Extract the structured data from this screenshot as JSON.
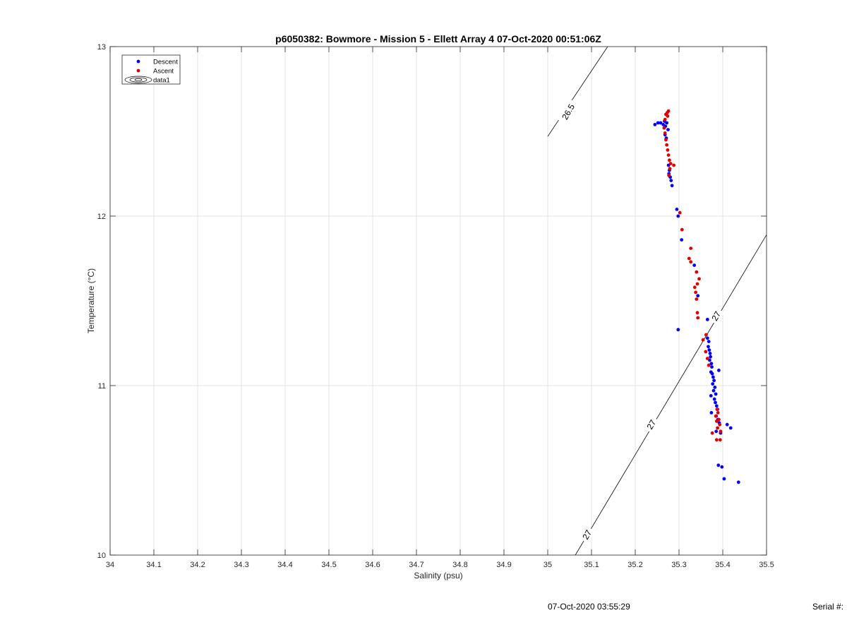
{
  "chart_data": {
    "type": "scatter",
    "title": "p6050382: Bowmore - Mission 5 - Ellett Array 4 07-Oct-2020 00:51:06Z",
    "xlabel": "Salinity (psu)",
    "ylabel": "Temperature (°C)",
    "xlim": [
      34,
      35.5
    ],
    "ylim": [
      10,
      13
    ],
    "xticks": [
      "34",
      "34.1",
      "34.2",
      "34.3",
      "34.4",
      "34.5",
      "34.6",
      "34.7",
      "34.8",
      "34.9",
      "35",
      "35.1",
      "35.2",
      "35.3",
      "35.4",
      "35.5"
    ],
    "yticks": [
      "10",
      "11",
      "12",
      "13"
    ],
    "grid": true,
    "legend_position": "top-left",
    "legend": [
      "Descent",
      "Ascent",
      "data1"
    ],
    "colors": {
      "Descent": "#0000ff",
      "Ascent": "#e00000",
      "contour": "#000000"
    },
    "series": [
      {
        "name": "Descent",
        "points": [
          [
            35.245,
            12.54
          ],
          [
            35.252,
            12.55
          ],
          [
            35.258,
            12.55
          ],
          [
            35.264,
            12.54
          ],
          [
            35.267,
            12.56
          ],
          [
            35.269,
            12.53
          ],
          [
            35.272,
            12.55
          ],
          [
            35.275,
            12.51
          ],
          [
            35.268,
            12.48
          ],
          [
            35.271,
            12.46
          ],
          [
            35.276,
            12.3
          ],
          [
            35.278,
            12.27
          ],
          [
            35.277,
            12.25
          ],
          [
            35.28,
            12.23
          ],
          [
            35.282,
            12.21
          ],
          [
            35.284,
            12.18
          ],
          [
            35.295,
            12.04
          ],
          [
            35.298,
            12.0
          ],
          [
            35.306,
            11.86
          ],
          [
            35.335,
            11.71
          ],
          [
            35.343,
            11.53
          ],
          [
            35.365,
            11.39
          ],
          [
            35.298,
            11.33
          ],
          [
            35.365,
            11.28
          ],
          [
            35.368,
            11.26
          ],
          [
            35.367,
            11.23
          ],
          [
            35.369,
            11.21
          ],
          [
            35.371,
            11.19
          ],
          [
            35.372,
            11.17
          ],
          [
            35.37,
            11.15
          ],
          [
            35.374,
            11.13
          ],
          [
            35.375,
            11.11
          ],
          [
            35.373,
            11.08
          ],
          [
            35.391,
            11.09
          ],
          [
            35.376,
            11.07
          ],
          [
            35.378,
            11.05
          ],
          [
            35.38,
            11.03
          ],
          [
            35.377,
            11.01
          ],
          [
            35.382,
            10.99
          ],
          [
            35.379,
            10.97
          ],
          [
            35.384,
            10.95
          ],
          [
            35.373,
            10.94
          ],
          [
            35.381,
            10.92
          ],
          [
            35.383,
            10.9
          ],
          [
            35.386,
            10.88
          ],
          [
            35.388,
            10.86
          ],
          [
            35.374,
            10.84
          ],
          [
            35.385,
            10.82
          ],
          [
            35.389,
            10.8
          ],
          [
            35.392,
            10.78
          ],
          [
            35.41,
            10.77
          ],
          [
            35.418,
            10.75
          ],
          [
            35.385,
            10.73
          ],
          [
            35.395,
            10.72
          ],
          [
            35.39,
            10.53
          ],
          [
            35.398,
            10.52
          ],
          [
            35.403,
            10.45
          ],
          [
            35.436,
            10.43
          ]
        ]
      },
      {
        "name": "Ascent",
        "points": [
          [
            35.273,
            12.61
          ],
          [
            35.276,
            12.62
          ],
          [
            35.27,
            12.6
          ],
          [
            35.274,
            12.59
          ],
          [
            35.268,
            12.57
          ],
          [
            35.266,
            12.52
          ],
          [
            35.268,
            12.49
          ],
          [
            35.27,
            12.45
          ],
          [
            35.272,
            12.42
          ],
          [
            35.274,
            12.39
          ],
          [
            35.276,
            12.36
          ],
          [
            35.278,
            12.33
          ],
          [
            35.288,
            12.3
          ],
          [
            35.281,
            12.31
          ],
          [
            35.279,
            12.28
          ],
          [
            35.277,
            12.24
          ],
          [
            35.302,
            12.02
          ],
          [
            35.307,
            11.92
          ],
          [
            35.327,
            11.81
          ],
          [
            35.323,
            11.75
          ],
          [
            35.327,
            11.73
          ],
          [
            35.34,
            11.67
          ],
          [
            35.346,
            11.63
          ],
          [
            35.342,
            11.6
          ],
          [
            35.336,
            11.58
          ],
          [
            35.338,
            11.55
          ],
          [
            35.34,
            11.51
          ],
          [
            35.342,
            11.43
          ],
          [
            35.343,
            11.4
          ],
          [
            35.362,
            11.3
          ],
          [
            35.355,
            11.27
          ],
          [
            35.361,
            11.2
          ],
          [
            35.365,
            11.16
          ],
          [
            35.368,
            11.12
          ],
          [
            35.387,
            10.86
          ],
          [
            35.389,
            10.84
          ],
          [
            35.384,
            10.82
          ],
          [
            35.391,
            10.8
          ],
          [
            35.386,
            10.79
          ],
          [
            35.393,
            10.77
          ],
          [
            35.388,
            10.75
          ],
          [
            35.395,
            10.73
          ],
          [
            35.376,
            10.72
          ],
          [
            35.386,
            10.68
          ],
          [
            35.394,
            10.68
          ]
        ]
      }
    ],
    "contours": [
      {
        "label": "26.5",
        "points": [
          [
            35.0,
            12.47
          ],
          [
            35.137,
            13.0
          ]
        ],
        "label_at": [
          35.047,
          12.615
        ],
        "label_angle": -60
      },
      {
        "label": "27",
        "points": [
          [
            35.063,
            10.0
          ],
          [
            35.5,
            11.89
          ]
        ],
        "label_at": [
          35.09,
          10.12
        ],
        "label_angle": -60
      },
      {
        "label": "27",
        "label_at": [
          35.237,
          10.77
        ],
        "label_angle": -60
      },
      {
        "label": "27",
        "label_at": [
          35.385,
          11.41
        ],
        "label_angle": -60
      }
    ]
  },
  "footer": {
    "timestamp": "07-Oct-2020 03:55:29",
    "serial_label": "Serial #:"
  }
}
